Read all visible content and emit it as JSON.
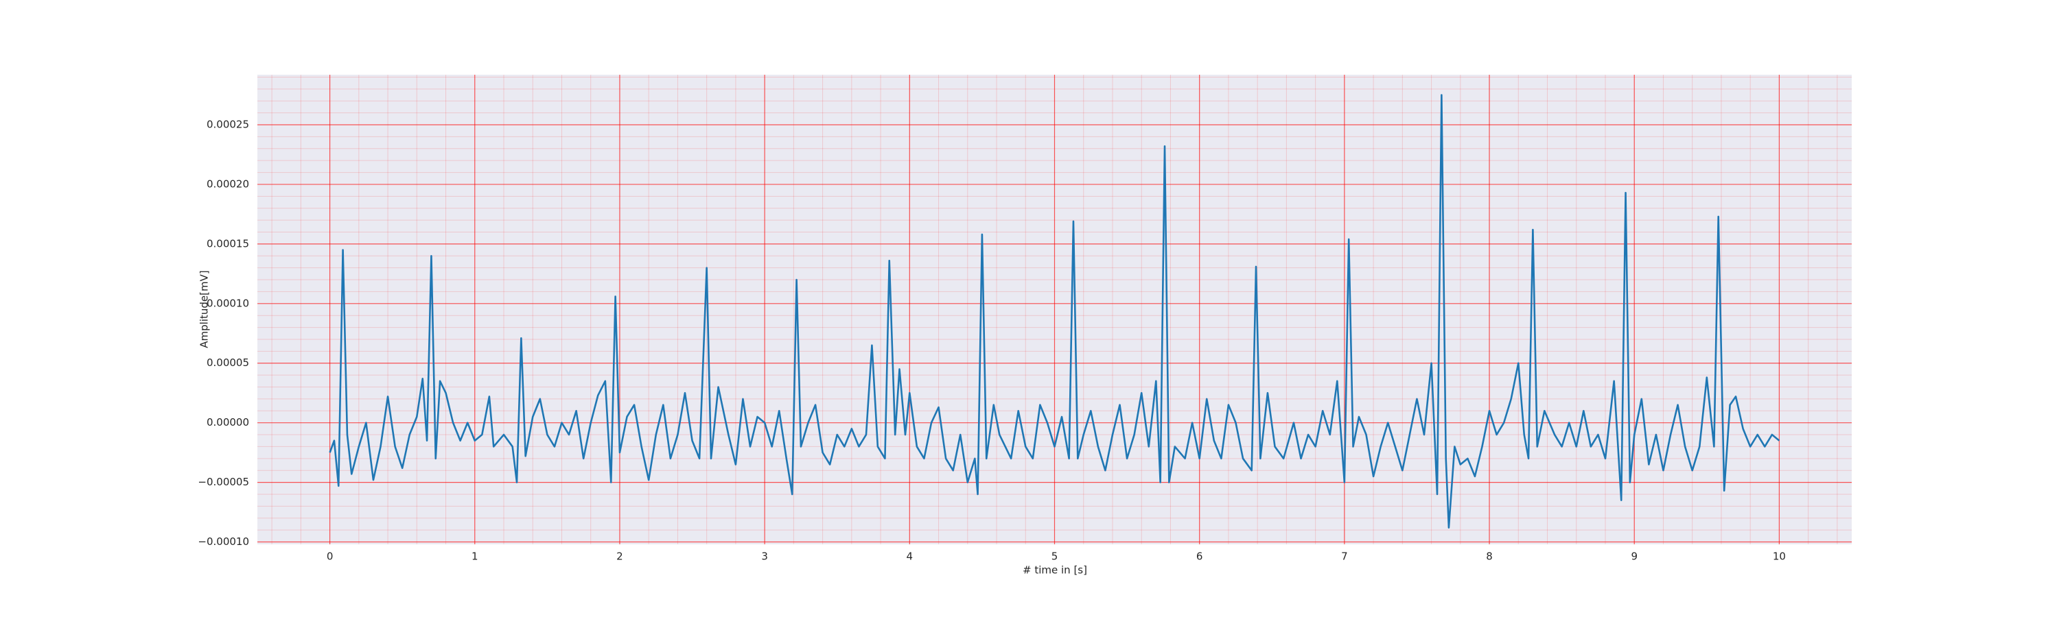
{
  "chart_data": {
    "type": "line",
    "xlabel": "# time in [s]",
    "ylabel": "Amplitude[mV]",
    "x": [
      0,
      0.03,
      0.06,
      0.09,
      0.12,
      0.15,
      0.2,
      0.25,
      0.3,
      0.35,
      0.4,
      0.45,
      0.5,
      0.55,
      0.6,
      0.64,
      0.67,
      0.7,
      0.73,
      0.76,
      0.8,
      0.85,
      0.9,
      0.95,
      1.0,
      1.05,
      1.1,
      1.13,
      1.2,
      1.26,
      1.29,
      1.32,
      1.35,
      1.4,
      1.45,
      1.5,
      1.55,
      1.6,
      1.65,
      1.7,
      1.75,
      1.8,
      1.85,
      1.9,
      1.94,
      1.97,
      2.0,
      2.05,
      2.1,
      2.15,
      2.2,
      2.25,
      2.3,
      2.35,
      2.4,
      2.45,
      2.5,
      2.55,
      2.6,
      2.63,
      2.68,
      2.75,
      2.8,
      2.85,
      2.9,
      2.95,
      3.0,
      3.05,
      3.1,
      3.15,
      3.19,
      3.22,
      3.25,
      3.3,
      3.35,
      3.4,
      3.45,
      3.5,
      3.55,
      3.6,
      3.65,
      3.7,
      3.74,
      3.78,
      3.83,
      3.86,
      3.9,
      3.93,
      3.97,
      4.0,
      4.05,
      4.1,
      4.15,
      4.2,
      4.25,
      4.3,
      4.35,
      4.4,
      4.45,
      4.47,
      4.5,
      4.53,
      4.58,
      4.62,
      4.7,
      4.75,
      4.8,
      4.85,
      4.9,
      4.95,
      5.0,
      5.05,
      5.1,
      5.13,
      5.16,
      5.2,
      5.25,
      5.3,
      5.35,
      5.4,
      5.45,
      5.5,
      5.55,
      5.6,
      5.65,
      5.7,
      5.73,
      5.76,
      5.79,
      5.83,
      5.9,
      5.95,
      6.0,
      6.05,
      6.1,
      6.15,
      6.2,
      6.25,
      6.3,
      6.36,
      6.39,
      6.42,
      6.47,
      6.52,
      6.58,
      6.65,
      6.7,
      6.75,
      6.8,
      6.85,
      6.9,
      6.95,
      7.0,
      7.03,
      7.06,
      7.1,
      7.15,
      7.2,
      7.25,
      7.3,
      7.35,
      7.4,
      7.45,
      7.5,
      7.55,
      7.6,
      7.64,
      7.67,
      7.7,
      7.72,
      7.76,
      7.8,
      7.85,
      7.9,
      7.95,
      8.0,
      8.05,
      8.1,
      8.15,
      8.2,
      8.24,
      8.27,
      8.3,
      8.33,
      8.38,
      8.45,
      8.5,
      8.55,
      8.6,
      8.65,
      8.7,
      8.75,
      8.8,
      8.86,
      8.91,
      8.94,
      8.97,
      9.0,
      9.05,
      9.1,
      9.15,
      9.2,
      9.25,
      9.3,
      9.35,
      9.4,
      9.45,
      9.5,
      9.55,
      9.58,
      9.62,
      9.66,
      9.7,
      9.75,
      9.8,
      9.85,
      9.9,
      9.95,
      10.0
    ],
    "series": [
      {
        "color": "#1f77b4",
        "values": [
          -2.5e-05,
          -1.5e-05,
          -5.3e-05,
          0.000145,
          -1e-05,
          -4.3e-05,
          -2e-05,
          0,
          -4.8e-05,
          -2e-05,
          2.2e-05,
          -2e-05,
          -3.8e-05,
          -1e-05,
          5e-06,
          3.7e-05,
          -1.5e-05,
          0.00014,
          -3e-05,
          3.5e-05,
          2.5e-05,
          0,
          -1.5e-05,
          0,
          -1.5e-05,
          -1e-05,
          2.2e-05,
          -2e-05,
          -1e-05,
          -2e-05,
          -5e-05,
          7.1e-05,
          -2.8e-05,
          5e-06,
          2e-05,
          -1e-05,
          -2e-05,
          0,
          -1e-05,
          1e-05,
          -3e-05,
          0,
          2.3e-05,
          3.5e-05,
          -5e-05,
          0.000106,
          -2.5e-05,
          5e-06,
          1.5e-05,
          -2e-05,
          -4.8e-05,
          -1e-05,
          1.5e-05,
          -3e-05,
          -1e-05,
          2.5e-05,
          -1.5e-05,
          -3e-05,
          0.00013,
          -3e-05,
          3e-05,
          -1e-05,
          -3.5e-05,
          2e-05,
          -2e-05,
          5e-06,
          0,
          -2e-05,
          1e-05,
          -3e-05,
          -6e-05,
          0.00012,
          -2e-05,
          0,
          1.5e-05,
          -2.5e-05,
          -3.5e-05,
          -1e-05,
          -2e-05,
          -5e-06,
          -2e-05,
          -1e-05,
          6.5e-05,
          -2e-05,
          -3e-05,
          0.000136,
          -1e-05,
          4.5e-05,
          -1e-05,
          2.5e-05,
          -2e-05,
          -3e-05,
          0,
          1.3e-05,
          -3e-05,
          -4e-05,
          -1e-05,
          -5e-05,
          -3e-05,
          -6e-05,
          0.000158,
          -3e-05,
          1.5e-05,
          -1e-05,
          -3e-05,
          1e-05,
          -2e-05,
          -3e-05,
          1.5e-05,
          0,
          -2e-05,
          5e-06,
          -3e-05,
          0.000169,
          -3e-05,
          -1e-05,
          1e-05,
          -2e-05,
          -4e-05,
          -1e-05,
          1.5e-05,
          -3e-05,
          -1e-05,
          2.5e-05,
          -2e-05,
          3.5e-05,
          -5e-05,
          0.000232,
          -5e-05,
          -2e-05,
          -3e-05,
          0,
          -3e-05,
          2e-05,
          -1.5e-05,
          -3e-05,
          1.5e-05,
          0,
          -3e-05,
          -4e-05,
          0.000131,
          -3e-05,
          2.5e-05,
          -2e-05,
          -3e-05,
          0,
          -3e-05,
          -1e-05,
          -2e-05,
          1e-05,
          -1e-05,
          3.5e-05,
          -5e-05,
          0.000154,
          -2e-05,
          5e-06,
          -1e-05,
          -4.5e-05,
          -2e-05,
          0,
          -2e-05,
          -4e-05,
          -1e-05,
          2e-05,
          -1e-05,
          5e-05,
          -6e-05,
          0.000275,
          -3e-05,
          -8.8e-05,
          -2e-05,
          -3.5e-05,
          -3e-05,
          -4.5e-05,
          -2e-05,
          1e-05,
          -1e-05,
          0,
          2e-05,
          5e-05,
          -1e-05,
          -3e-05,
          0.000162,
          -2e-05,
          1e-05,
          -1e-05,
          -2e-05,
          0,
          -2e-05,
          1e-05,
          -2e-05,
          -1e-05,
          -3e-05,
          3.5e-05,
          -6.5e-05,
          0.000193,
          -5e-05,
          -1e-05,
          2e-05,
          -3.5e-05,
          -1e-05,
          -4e-05,
          -1e-05,
          1.5e-05,
          -2e-05,
          -4e-05,
          -2e-05,
          3.8e-05,
          -2e-05,
          0.000173,
          -5.7e-05,
          1.5e-05,
          2.2e-05,
          -5e-06,
          -2e-05,
          -1e-05,
          -2e-05,
          -1e-05,
          -1.5e-05
        ]
      }
    ],
    "xlim": [
      -0.5,
      10.5
    ],
    "ylim": [
      -0.000102,
      0.000292
    ],
    "xticks": [
      0,
      1,
      2,
      3,
      4,
      5,
      6,
      7,
      8,
      9,
      10
    ],
    "yticks": [
      {
        "value": -0.0001,
        "label": "−0.00010"
      },
      {
        "value": -5e-05,
        "label": "−0.00005"
      },
      {
        "value": 0,
        "label": "0.00000"
      },
      {
        "value": 5e-05,
        "label": "0.00005"
      },
      {
        "value": 0.0001,
        "label": "0.00010"
      },
      {
        "value": 0.00015,
        "label": "0.00015"
      },
      {
        "value": 0.0002,
        "label": "0.00020"
      },
      {
        "value": 0.00025,
        "label": "0.00025"
      }
    ],
    "grid": true,
    "grid_color": "#ff0000"
  }
}
